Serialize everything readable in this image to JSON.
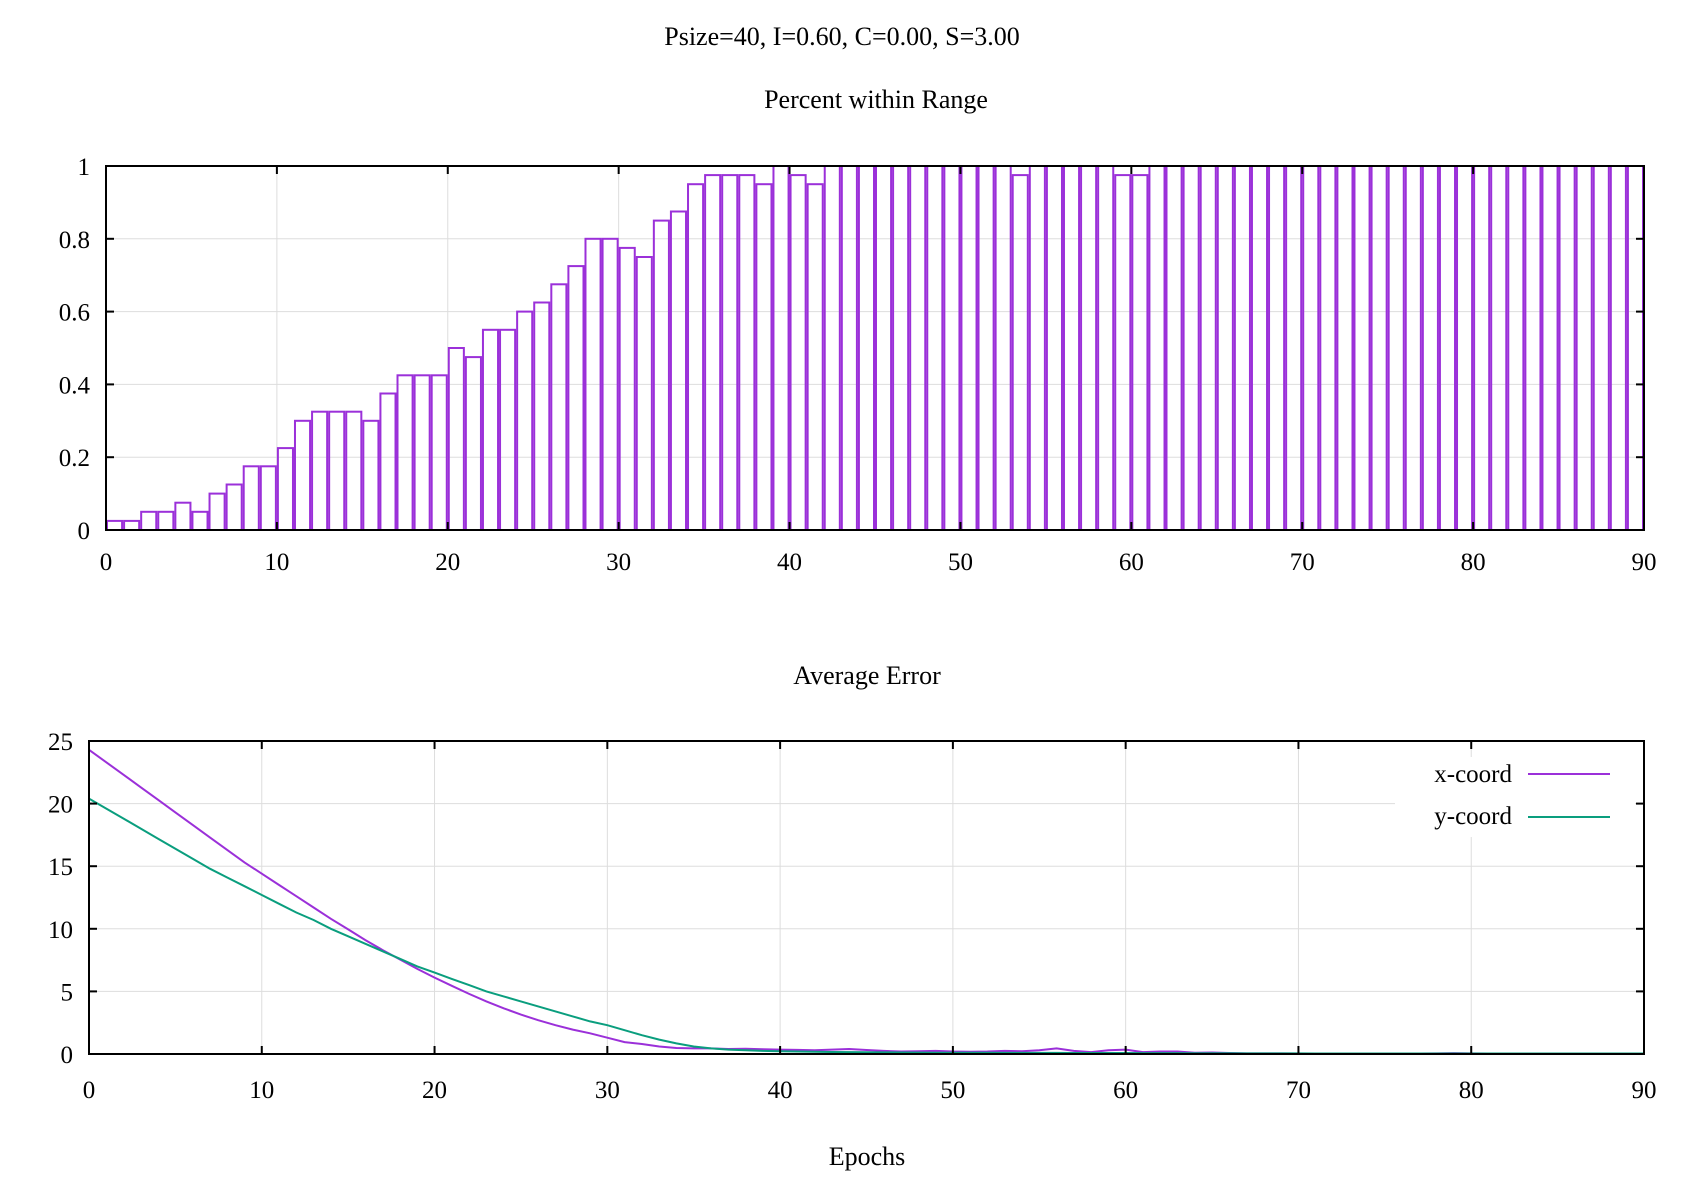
{
  "figure": {
    "title": "Psize=40, I=0.60, C=0.00, S=3.00"
  },
  "chart_data": [
    {
      "type": "bar",
      "title": "Percent within Range",
      "xlabel": "",
      "ylabel": "",
      "xlim": [
        0,
        90
      ],
      "ylim": [
        0,
        1
      ],
      "x_ticks": [
        0,
        10,
        20,
        30,
        40,
        50,
        60,
        70,
        80,
        90
      ],
      "y_ticks": [
        0,
        0.2,
        0.4,
        0.6,
        0.8,
        1
      ],
      "y_tick_labels": [
        "0",
        "0.2",
        "0.4",
        "0.6",
        "0.8",
        "1"
      ],
      "grid": true,
      "bar_style": "outline",
      "color": "#9b30d9",
      "x": [
        0,
        1,
        2,
        3,
        4,
        5,
        6,
        7,
        8,
        9,
        10,
        11,
        12,
        13,
        14,
        15,
        16,
        17,
        18,
        19,
        20,
        21,
        22,
        23,
        24,
        25,
        26,
        27,
        28,
        29,
        30,
        31,
        32,
        33,
        34,
        35,
        36,
        37,
        38,
        39,
        40,
        41,
        42,
        43,
        44,
        45,
        46,
        47,
        48,
        49,
        50,
        51,
        52,
        53,
        54,
        55,
        56,
        57,
        58,
        59,
        60,
        61,
        62,
        63,
        64,
        65,
        66,
        67,
        68,
        69,
        70,
        71,
        72,
        73,
        74,
        75,
        76,
        77,
        78,
        79,
        80,
        81,
        82,
        83,
        84,
        85,
        86,
        87,
        88,
        89
      ],
      "values": [
        0.025,
        0.025,
        0.05,
        0.05,
        0.075,
        0.05,
        0.1,
        0.125,
        0.175,
        0.175,
        0.225,
        0.3,
        0.325,
        0.325,
        0.325,
        0.3,
        0.375,
        0.425,
        0.425,
        0.425,
        0.5,
        0.475,
        0.55,
        0.55,
        0.6,
        0.625,
        0.675,
        0.725,
        0.8,
        0.8,
        0.775,
        0.75,
        0.85,
        0.875,
        0.95,
        0.975,
        0.975,
        0.975,
        0.95,
        1,
        0.975,
        0.95,
        1,
        1,
        1,
        1,
        1,
        1,
        1,
        1,
        1,
        1,
        1,
        0.975,
        1,
        1,
        1,
        1,
        1,
        0.975,
        0.975,
        1,
        1,
        1,
        1,
        1,
        1,
        1,
        1,
        1,
        1,
        1,
        1,
        1,
        1,
        1,
        1,
        1,
        1,
        1,
        1,
        1,
        1,
        1,
        1,
        1,
        1,
        1,
        1,
        1
      ]
    },
    {
      "type": "line",
      "title": "Average Error",
      "xlabel": "Epochs",
      "ylabel": "",
      "xlim": [
        0,
        90
      ],
      "ylim": [
        0,
        25
      ],
      "x_ticks": [
        0,
        10,
        20,
        30,
        40,
        50,
        60,
        70,
        80,
        90
      ],
      "y_ticks": [
        0,
        5,
        10,
        15,
        20,
        25
      ],
      "grid": true,
      "legend": "top-right",
      "x": [
        0,
        1,
        2,
        3,
        4,
        5,
        6,
        7,
        8,
        9,
        10,
        11,
        12,
        13,
        14,
        15,
        16,
        17,
        18,
        19,
        20,
        21,
        22,
        23,
        24,
        25,
        26,
        27,
        28,
        29,
        30,
        31,
        32,
        33,
        34,
        35,
        36,
        37,
        38,
        39,
        40,
        41,
        42,
        43,
        44,
        45,
        46,
        47,
        48,
        49,
        50,
        51,
        52,
        53,
        54,
        55,
        56,
        57,
        58,
        59,
        60,
        61,
        62,
        63,
        64,
        65,
        66,
        67,
        68,
        69,
        70,
        71,
        72,
        73,
        74,
        75,
        76,
        77,
        78,
        79,
        80,
        81,
        82,
        83,
        84,
        85,
        86,
        87,
        88,
        89,
        90
      ],
      "series": [
        {
          "name": "x-coord",
          "color": "#9b30d9",
          "values": [
            24.3,
            23.3,
            22.3,
            21.3,
            20.3,
            19.3,
            18.3,
            17.3,
            16.3,
            15.3,
            14.4,
            13.5,
            12.6,
            11.7,
            10.8,
            9.95,
            9.1,
            8.3,
            7.55,
            6.8,
            6.1,
            5.45,
            4.8,
            4.2,
            3.65,
            3.15,
            2.7,
            2.3,
            1.95,
            1.65,
            1.3,
            0.95,
            0.8,
            0.6,
            0.48,
            0.45,
            0.45,
            0.4,
            0.42,
            0.38,
            0.35,
            0.33,
            0.3,
            0.35,
            0.4,
            0.32,
            0.25,
            0.2,
            0.22,
            0.25,
            0.2,
            0.18,
            0.2,
            0.25,
            0.22,
            0.3,
            0.45,
            0.25,
            0.15,
            0.3,
            0.35,
            0.15,
            0.2,
            0.2,
            0.1,
            0.12,
            0.08,
            0.05,
            0.05,
            0.05,
            0.04,
            0.04,
            0.04,
            0.04,
            0.04,
            0.04,
            0.04,
            0.04,
            0.05,
            0.07,
            0.05,
            0.04,
            0.04,
            0.04,
            0.04,
            0.04,
            0.04,
            0.04,
            0.04,
            0.04,
            0.04
          ]
        },
        {
          "name": "y-coord",
          "color": "#0a9e7e",
          "values": [
            20.4,
            19.6,
            18.8,
            18.0,
            17.2,
            16.4,
            15.6,
            14.8,
            14.1,
            13.4,
            12.7,
            12.0,
            11.3,
            10.7,
            10.0,
            9.4,
            8.8,
            8.2,
            7.6,
            7.0,
            6.5,
            6.0,
            5.5,
            5.0,
            4.6,
            4.2,
            3.8,
            3.4,
            3.0,
            2.6,
            2.3,
            1.9,
            1.5,
            1.15,
            0.85,
            0.6,
            0.45,
            0.35,
            0.3,
            0.25,
            0.22,
            0.2,
            0.18,
            0.16,
            0.15,
            0.14,
            0.13,
            0.12,
            0.11,
            0.1,
            0.1,
            0.1,
            0.1,
            0.09,
            0.09,
            0.09,
            0.09,
            0.08,
            0.08,
            0.08,
            0.08,
            0.07,
            0.07,
            0.07,
            0.06,
            0.06,
            0.06,
            0.05,
            0.05,
            0.05,
            0.05,
            0.04,
            0.04,
            0.04,
            0.04,
            0.04,
            0.04,
            0.04,
            0.04,
            0.04,
            0.04,
            0.04,
            0.04,
            0.04,
            0.04,
            0.04,
            0.04,
            0.04,
            0.04,
            0.04,
            0.04
          ]
        }
      ]
    }
  ]
}
